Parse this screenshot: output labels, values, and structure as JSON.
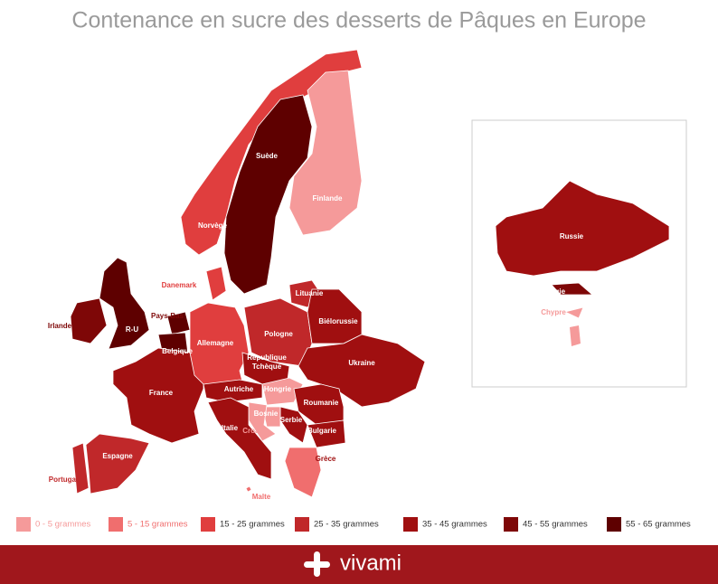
{
  "title": "Contenance en sucre des desserts de Pâques en Europe",
  "legend": [
    {
      "label": "0 - 5 grammes",
      "color": "#f59a9a"
    },
    {
      "label": "5 - 15 grammes",
      "color": "#f06e6e"
    },
    {
      "label": "15 - 25 grammes",
      "color": "#e03e3e"
    },
    {
      "label": "25 - 35 grammes",
      "color": "#c0282a"
    },
    {
      "label": "35 - 45 grammes",
      "color": "#a00f10"
    },
    {
      "label": "45 - 55 grammes",
      "color": "#7e0707"
    },
    {
      "label": "55 - 65 grammes",
      "color": "#5e0000"
    }
  ],
  "countries": [
    {
      "name": "Norvège",
      "legend": 2
    },
    {
      "name": "Suède",
      "legend": 6
    },
    {
      "name": "Finlande",
      "legend": 0
    },
    {
      "name": "Danemark",
      "legend": 2
    },
    {
      "name": "R-U",
      "legend": 6
    },
    {
      "name": "Irlande",
      "legend": 5
    },
    {
      "name": "Pays-Bas",
      "legend": 6
    },
    {
      "name": "Belgique",
      "legend": 6
    },
    {
      "name": "France",
      "legend": 4
    },
    {
      "name": "Espagne",
      "legend": 3
    },
    {
      "name": "Portugal",
      "legend": 3
    },
    {
      "name": "Allemagne",
      "legend": 2
    },
    {
      "name": "Pologne",
      "legend": 3
    },
    {
      "name": "Lituanie",
      "legend": 3
    },
    {
      "name": "Biélorussie",
      "legend": 4
    },
    {
      "name": "Ukraine",
      "legend": 4
    },
    {
      "name": "République Tchèque",
      "legend": 4
    },
    {
      "name": "Autriche",
      "legend": 4
    },
    {
      "name": "Hongrie",
      "legend": 0
    },
    {
      "name": "Roumanie",
      "legend": 4
    },
    {
      "name": "Bulgarie",
      "legend": 4
    },
    {
      "name": "Serbie",
      "legend": 4
    },
    {
      "name": "Bosnie",
      "legend": 0
    },
    {
      "name": "Croatie",
      "legend": 0
    },
    {
      "name": "Italie",
      "legend": 4
    },
    {
      "name": "Grèce",
      "legend": 1
    },
    {
      "name": "Malte",
      "legend": 1
    },
    {
      "name": "Russie",
      "legend": 4
    },
    {
      "name": "Géorgie",
      "legend": 5
    },
    {
      "name": "Chypre",
      "legend": 0
    }
  ],
  "brand": "vivami"
}
